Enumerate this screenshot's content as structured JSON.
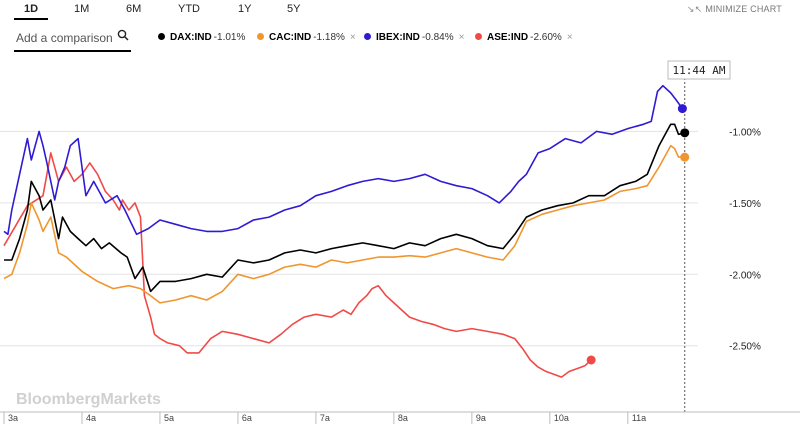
{
  "tabs": [
    {
      "label": "1D",
      "active": true
    },
    {
      "label": "1M",
      "active": false
    },
    {
      "label": "6M",
      "active": false
    },
    {
      "label": "YTD",
      "active": false
    },
    {
      "label": "1Y",
      "active": false
    },
    {
      "label": "5Y",
      "active": false
    }
  ],
  "minimize_label": "MINIMIZE CHART",
  "search": {
    "placeholder": "Add a comparison"
  },
  "legend": [
    {
      "symbol": "DAX:IND",
      "change": "-1.01%",
      "color": "#000000",
      "removable": false
    },
    {
      "symbol": "CAC:IND",
      "change": "-1.18%",
      "color": "#f0962f",
      "removable": true
    },
    {
      "symbol": "IBEX:IND",
      "change": "-0.84%",
      "color": "#2f1bd3",
      "removable": true
    },
    {
      "symbol": "ASE:IND",
      "change": "-2.60%",
      "color": "#f04a48",
      "removable": true
    }
  ],
  "watermark": "BloombergMarkets",
  "current_time": "11:44 AM",
  "chart_data": {
    "type": "line",
    "x_unit": "time of day",
    "x_ticks": [
      "3a",
      "4a",
      "5a",
      "6a",
      "7a",
      "8a",
      "9a",
      "10a",
      "11a"
    ],
    "x_range": [
      3.0,
      11.9
    ],
    "y_ticks": [
      "-1.00%",
      "-1.50%",
      "-2.00%",
      "-2.50%"
    ],
    "y_tick_values": [
      -1.0,
      -1.5,
      -2.0,
      -2.5
    ],
    "ylim": [
      -2.95,
      -0.5
    ],
    "grid": "horizontal",
    "series": [
      {
        "name": "DAX:IND",
        "color": "#000000",
        "last": -1.01,
        "points": [
          [
            3.0,
            -1.9
          ],
          [
            3.1,
            -1.9
          ],
          [
            3.2,
            -1.75
          ],
          [
            3.3,
            -1.55
          ],
          [
            3.35,
            -1.35
          ],
          [
            3.45,
            -1.45
          ],
          [
            3.5,
            -1.55
          ],
          [
            3.6,
            -1.48
          ],
          [
            3.7,
            -1.75
          ],
          [
            3.75,
            -1.6
          ],
          [
            3.85,
            -1.7
          ],
          [
            3.95,
            -1.75
          ],
          [
            4.05,
            -1.8
          ],
          [
            4.15,
            -1.75
          ],
          [
            4.25,
            -1.82
          ],
          [
            4.35,
            -1.78
          ],
          [
            4.5,
            -1.85
          ],
          [
            4.58,
            -1.88
          ],
          [
            4.68,
            -2.03
          ],
          [
            4.78,
            -1.95
          ],
          [
            4.88,
            -2.12
          ],
          [
            5.0,
            -2.05
          ],
          [
            5.2,
            -2.05
          ],
          [
            5.4,
            -2.03
          ],
          [
            5.6,
            -2.0
          ],
          [
            5.8,
            -2.02
          ],
          [
            6.0,
            -1.9
          ],
          [
            6.2,
            -1.92
          ],
          [
            6.4,
            -1.9
          ],
          [
            6.6,
            -1.85
          ],
          [
            6.8,
            -1.83
          ],
          [
            7.0,
            -1.85
          ],
          [
            7.2,
            -1.82
          ],
          [
            7.4,
            -1.8
          ],
          [
            7.6,
            -1.78
          ],
          [
            7.8,
            -1.8
          ],
          [
            8.0,
            -1.82
          ],
          [
            8.2,
            -1.78
          ],
          [
            8.4,
            -1.8
          ],
          [
            8.6,
            -1.75
          ],
          [
            8.8,
            -1.72
          ],
          [
            9.0,
            -1.75
          ],
          [
            9.2,
            -1.8
          ],
          [
            9.4,
            -1.82
          ],
          [
            9.55,
            -1.72
          ],
          [
            9.7,
            -1.6
          ],
          [
            9.9,
            -1.55
          ],
          [
            10.1,
            -1.52
          ],
          [
            10.3,
            -1.5
          ],
          [
            10.5,
            -1.45
          ],
          [
            10.7,
            -1.45
          ],
          [
            10.9,
            -1.38
          ],
          [
            11.1,
            -1.35
          ],
          [
            11.25,
            -1.3
          ],
          [
            11.4,
            -1.1
          ],
          [
            11.5,
            -1.0
          ],
          [
            11.55,
            -0.95
          ],
          [
            11.6,
            -0.95
          ],
          [
            11.65,
            -1.02
          ],
          [
            11.73,
            -1.01
          ]
        ]
      },
      {
        "name": "CAC:IND",
        "color": "#f0962f",
        "last": -1.18,
        "points": [
          [
            3.0,
            -2.03
          ],
          [
            3.1,
            -2.0
          ],
          [
            3.2,
            -1.85
          ],
          [
            3.3,
            -1.65
          ],
          [
            3.35,
            -1.5
          ],
          [
            3.45,
            -1.62
          ],
          [
            3.5,
            -1.7
          ],
          [
            3.6,
            -1.6
          ],
          [
            3.7,
            -1.85
          ],
          [
            3.8,
            -1.88
          ],
          [
            4.0,
            -1.98
          ],
          [
            4.2,
            -2.05
          ],
          [
            4.4,
            -2.1
          ],
          [
            4.6,
            -2.08
          ],
          [
            4.75,
            -2.1
          ],
          [
            4.88,
            -2.15
          ],
          [
            5.0,
            -2.2
          ],
          [
            5.2,
            -2.18
          ],
          [
            5.4,
            -2.15
          ],
          [
            5.6,
            -2.18
          ],
          [
            5.8,
            -2.12
          ],
          [
            6.0,
            -2.0
          ],
          [
            6.2,
            -2.03
          ],
          [
            6.4,
            -2.0
          ],
          [
            6.6,
            -1.95
          ],
          [
            6.8,
            -1.93
          ],
          [
            7.0,
            -1.95
          ],
          [
            7.2,
            -1.9
          ],
          [
            7.4,
            -1.92
          ],
          [
            7.6,
            -1.9
          ],
          [
            7.8,
            -1.88
          ],
          [
            8.0,
            -1.88
          ],
          [
            8.2,
            -1.87
          ],
          [
            8.4,
            -1.88
          ],
          [
            8.6,
            -1.85
          ],
          [
            8.8,
            -1.82
          ],
          [
            9.0,
            -1.85
          ],
          [
            9.2,
            -1.88
          ],
          [
            9.4,
            -1.9
          ],
          [
            9.55,
            -1.8
          ],
          [
            9.7,
            -1.63
          ],
          [
            9.9,
            -1.58
          ],
          [
            10.1,
            -1.55
          ],
          [
            10.3,
            -1.52
          ],
          [
            10.5,
            -1.5
          ],
          [
            10.7,
            -1.48
          ],
          [
            10.9,
            -1.42
          ],
          [
            11.1,
            -1.4
          ],
          [
            11.25,
            -1.38
          ],
          [
            11.4,
            -1.25
          ],
          [
            11.5,
            -1.15
          ],
          [
            11.55,
            -1.1
          ],
          [
            11.6,
            -1.12
          ],
          [
            11.65,
            -1.18
          ],
          [
            11.73,
            -1.18
          ]
        ]
      },
      {
        "name": "IBEX:IND",
        "color": "#2f1bd3",
        "last": -0.84,
        "points": [
          [
            3.0,
            -1.7
          ],
          [
            3.05,
            -1.72
          ],
          [
            3.1,
            -1.55
          ],
          [
            3.2,
            -1.3
          ],
          [
            3.3,
            -1.05
          ],
          [
            3.35,
            -1.2
          ],
          [
            3.45,
            -1.0
          ],
          [
            3.5,
            -1.1
          ],
          [
            3.55,
            -1.22
          ],
          [
            3.65,
            -1.48
          ],
          [
            3.7,
            -1.35
          ],
          [
            3.78,
            -1.25
          ],
          [
            3.85,
            -1.1
          ],
          [
            3.95,
            -1.05
          ],
          [
            4.05,
            -1.45
          ],
          [
            4.15,
            -1.35
          ],
          [
            4.3,
            -1.5
          ],
          [
            4.45,
            -1.45
          ],
          [
            4.55,
            -1.55
          ],
          [
            4.7,
            -1.72
          ],
          [
            4.85,
            -1.68
          ],
          [
            5.0,
            -1.62
          ],
          [
            5.2,
            -1.65
          ],
          [
            5.4,
            -1.68
          ],
          [
            5.6,
            -1.7
          ],
          [
            5.8,
            -1.7
          ],
          [
            6.0,
            -1.68
          ],
          [
            6.2,
            -1.62
          ],
          [
            6.4,
            -1.6
          ],
          [
            6.6,
            -1.55
          ],
          [
            6.8,
            -1.52
          ],
          [
            7.0,
            -1.45
          ],
          [
            7.2,
            -1.42
          ],
          [
            7.4,
            -1.38
          ],
          [
            7.6,
            -1.35
          ],
          [
            7.8,
            -1.33
          ],
          [
            8.0,
            -1.35
          ],
          [
            8.2,
            -1.33
          ],
          [
            8.4,
            -1.3
          ],
          [
            8.6,
            -1.35
          ],
          [
            8.8,
            -1.38
          ],
          [
            9.0,
            -1.4
          ],
          [
            9.2,
            -1.45
          ],
          [
            9.35,
            -1.5
          ],
          [
            9.5,
            -1.42
          ],
          [
            9.6,
            -1.35
          ],
          [
            9.7,
            -1.3
          ],
          [
            9.85,
            -1.15
          ],
          [
            10.0,
            -1.12
          ],
          [
            10.2,
            -1.05
          ],
          [
            10.4,
            -1.08
          ],
          [
            10.6,
            -1.0
          ],
          [
            10.8,
            -1.02
          ],
          [
            11.0,
            -0.98
          ],
          [
            11.2,
            -0.95
          ],
          [
            11.3,
            -0.93
          ],
          [
            11.38,
            -0.72
          ],
          [
            11.45,
            -0.68
          ],
          [
            11.55,
            -0.73
          ],
          [
            11.62,
            -0.78
          ],
          [
            11.7,
            -0.84
          ]
        ]
      },
      {
        "name": "ASE:IND",
        "color": "#f04a48",
        "last": -2.6,
        "points": [
          [
            3.0,
            -1.8
          ],
          [
            3.3,
            -1.52
          ],
          [
            3.5,
            -1.45
          ],
          [
            3.6,
            -1.15
          ],
          [
            3.7,
            -1.35
          ],
          [
            3.8,
            -1.25
          ],
          [
            3.9,
            -1.35
          ],
          [
            4.0,
            -1.3
          ],
          [
            4.1,
            -1.22
          ],
          [
            4.2,
            -1.3
          ],
          [
            4.3,
            -1.42
          ],
          [
            4.4,
            -1.48
          ],
          [
            4.48,
            -1.55
          ],
          [
            4.52,
            -1.48
          ],
          [
            4.6,
            -1.55
          ],
          [
            4.68,
            -1.5
          ],
          [
            4.75,
            -1.6
          ],
          [
            4.8,
            -2.15
          ],
          [
            4.88,
            -2.3
          ],
          [
            4.93,
            -2.42
          ],
          [
            5.0,
            -2.45
          ],
          [
            5.1,
            -2.48
          ],
          [
            5.25,
            -2.5
          ],
          [
            5.35,
            -2.55
          ],
          [
            5.5,
            -2.55
          ],
          [
            5.65,
            -2.45
          ],
          [
            5.8,
            -2.4
          ],
          [
            6.0,
            -2.42
          ],
          [
            6.2,
            -2.45
          ],
          [
            6.4,
            -2.48
          ],
          [
            6.55,
            -2.42
          ],
          [
            6.7,
            -2.35
          ],
          [
            6.85,
            -2.3
          ],
          [
            7.0,
            -2.28
          ],
          [
            7.2,
            -2.3
          ],
          [
            7.35,
            -2.25
          ],
          [
            7.45,
            -2.28
          ],
          [
            7.55,
            -2.2
          ],
          [
            7.65,
            -2.15
          ],
          [
            7.72,
            -2.1
          ],
          [
            7.8,
            -2.08
          ],
          [
            7.9,
            -2.15
          ],
          [
            8.0,
            -2.2
          ],
          [
            8.1,
            -2.25
          ],
          [
            8.2,
            -2.3
          ],
          [
            8.35,
            -2.33
          ],
          [
            8.5,
            -2.35
          ],
          [
            8.65,
            -2.38
          ],
          [
            8.8,
            -2.4
          ],
          [
            9.0,
            -2.38
          ],
          [
            9.2,
            -2.4
          ],
          [
            9.4,
            -2.42
          ],
          [
            9.55,
            -2.45
          ],
          [
            9.65,
            -2.52
          ],
          [
            9.75,
            -2.6
          ],
          [
            9.85,
            -2.65
          ],
          [
            9.95,
            -2.68
          ],
          [
            10.05,
            -2.7
          ],
          [
            10.15,
            -2.72
          ],
          [
            10.25,
            -2.68
          ],
          [
            10.35,
            -2.66
          ],
          [
            10.45,
            -2.64
          ],
          [
            10.53,
            -2.6
          ]
        ]
      }
    ]
  }
}
